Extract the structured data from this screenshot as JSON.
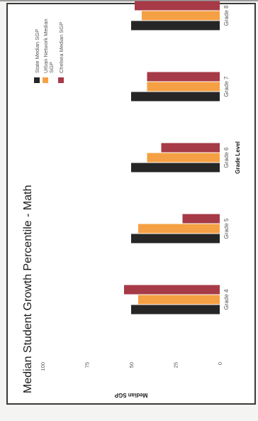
{
  "chart_data": {
    "type": "bar",
    "title": "Median Student Growth Percentile - Math",
    "xlabel": "Grade Level",
    "ylabel": "Median SGP",
    "categories": [
      "Grade 4",
      "Grade 5",
      "Grade 6",
      "Grade 7",
      "Grade 8"
    ],
    "ylim": [
      0,
      100
    ],
    "yticks": [
      0,
      25,
      50,
      75,
      100
    ],
    "grid": false,
    "legend_position": "top-right",
    "series": [
      {
        "name": "State Median SGP",
        "values": [
          50,
          50,
          50,
          50,
          50
        ],
        "color": "#262626"
      },
      {
        "name": "Urban Network Median SGP",
        "values": [
          46,
          46,
          41,
          41,
          44
        ],
        "color": "#f5a044"
      },
      {
        "name": "Chelsea Median SGP",
        "values": [
          54,
          21,
          33,
          41,
          48
        ],
        "color": "#a63a46"
      }
    ]
  }
}
